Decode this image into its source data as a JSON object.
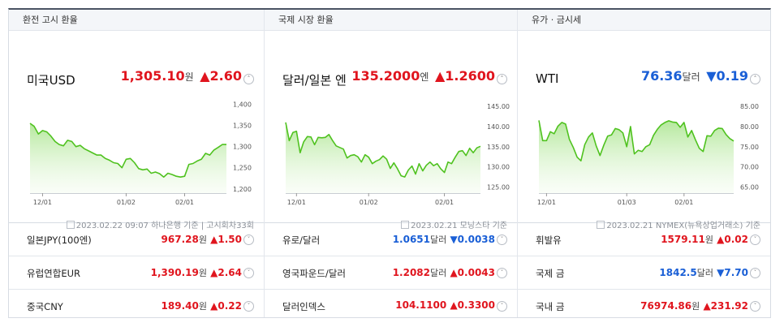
{
  "columns": [
    {
      "header": "환전 고시 환율",
      "main": {
        "name": "미국USD",
        "value": "1,305.10",
        "unit": "원",
        "change": "▲2.60",
        "dir": "up",
        "toggle": "˄"
      },
      "note": "2023.02.22 09:07 하나은행 기준 | 고시회차33회",
      "rows": [
        {
          "name": "일본JPY(100엔)",
          "value": "967.28",
          "unit": "원",
          "change": "▲1.50",
          "dir": "up",
          "toggle": "˅"
        },
        {
          "name": "유럽연합EUR",
          "value": "1,390.19",
          "unit": "원",
          "change": "▲2.64",
          "dir": "up",
          "toggle": "˅"
        },
        {
          "name": "중국CNY",
          "value": "189.40",
          "unit": "원",
          "change": "▲0.22",
          "dir": "up",
          "toggle": "˅"
        }
      ]
    },
    {
      "header": "국제 시장 환율",
      "main": {
        "name": "달러/일본 엔",
        "value": "135.2000",
        "unit": "엔",
        "change": "▲1.2600",
        "dir": "up",
        "toggle": "˄"
      },
      "note": "2023.02.21 모닝스타 기준",
      "rows": [
        {
          "name": "유로/달러",
          "value": "1.0651",
          "unit": "달러",
          "change": "▼0.0038",
          "dir": "down",
          "toggle": "˅"
        },
        {
          "name": "영국파운드/달러",
          "value": "1.2082",
          "unit": "달러",
          "change": "▲0.0043",
          "dir": "up",
          "toggle": "˅"
        },
        {
          "name": "달러인덱스",
          "value": "104.1100",
          "unit": "",
          "change": "▲0.3300",
          "dir": "up",
          "toggle": "˅"
        }
      ]
    },
    {
      "header": "유가 · 금시세",
      "main": {
        "name": "WTI",
        "value": "76.36",
        "unit": "달러",
        "change": "▼0.19",
        "dir": "down",
        "toggle": "˄"
      },
      "note": "2023.02.21 NYMEX(뉴욕상업거래소) 기준",
      "rows": [
        {
          "name": "휘발유",
          "value": "1579.11",
          "unit": "원",
          "change": "▲0.02",
          "dir": "up",
          "toggle": "˅"
        },
        {
          "name": "국제 금",
          "value": "1842.5",
          "unit": "달러",
          "change": "▼7.70",
          "dir": "down",
          "toggle": "˅"
        },
        {
          "name": "국내 금",
          "value": "76974.86",
          "unit": "원",
          "change": "▲231.92",
          "dir": "up",
          "toggle": "˅"
        }
      ]
    }
  ],
  "chart_data": [
    {
      "type": "area",
      "xticks": [
        "12/01",
        "01/02",
        "02/01"
      ],
      "xtick_idx": [
        3,
        23,
        37
      ],
      "yticks": [
        "1,400",
        "1,350",
        "1,300",
        "1,250",
        "1,200"
      ],
      "ytick_vals": [
        1400,
        1350,
        1300,
        1250,
        1200
      ],
      "ylim": [
        1190,
        1405
      ],
      "values": [
        1355,
        1348,
        1330,
        1338,
        1335,
        1325,
        1312,
        1305,
        1302,
        1315,
        1312,
        1300,
        1303,
        1295,
        1290,
        1285,
        1280,
        1280,
        1272,
        1268,
        1262,
        1260,
        1250,
        1270,
        1272,
        1262,
        1248,
        1245,
        1247,
        1237,
        1240,
        1236,
        1228,
        1237,
        1234,
        1230,
        1228,
        1230,
        1258,
        1260,
        1266,
        1270,
        1284,
        1280,
        1292,
        1298,
        1305,
        1305
      ]
    },
    {
      "type": "area",
      "xticks": [
        "12/01",
        "01/02",
        "02/01"
      ],
      "xtick_idx": [
        3,
        23,
        44
      ],
      "yticks": [
        "145.00",
        "140.00",
        "135.00",
        "130.00",
        "125.00"
      ],
      "ytick_vals": [
        145,
        140,
        135,
        130,
        125
      ],
      "ylim": [
        123.5,
        146
      ],
      "values": [
        141,
        136.5,
        138.5,
        138.8,
        133.5,
        136.2,
        137.5,
        137.4,
        135.5,
        137.3,
        137.2,
        137.3,
        138,
        136.5,
        135.2,
        134.8,
        134.4,
        132.2,
        132.8,
        133,
        132.5,
        131.2,
        133,
        132.4,
        130.8,
        131.4,
        131.8,
        132.7,
        131.9,
        129.6,
        131,
        129.5,
        127.8,
        127.5,
        129.2,
        130.2,
        128.2,
        130.8,
        129,
        130.4,
        131.2,
        130.3,
        130.8,
        129.5,
        128.6,
        131.2,
        130.8,
        132.4,
        133.8,
        134,
        132.8,
        134.6,
        133.5,
        134.7,
        135.1
      ]
    },
    {
      "type": "area",
      "xticks": [
        "12/01",
        "01/03",
        "02/01"
      ],
      "xtick_idx": [
        2,
        23,
        38
      ],
      "yticks": [
        "85.00",
        "80.00",
        "75.00",
        "70.00",
        "65.00"
      ],
      "ytick_vals": [
        85,
        80,
        75,
        70,
        65
      ],
      "ylim": [
        63.5,
        86
      ],
      "values": [
        81.5,
        76.5,
        76.5,
        78.7,
        78.2,
        80.1,
        81,
        80.6,
        76.8,
        74.8,
        72.4,
        71.5,
        75.5,
        77.4,
        78.4,
        75.2,
        72.8,
        75.4,
        77.6,
        77.9,
        79.5,
        79.2,
        78.4,
        75,
        80,
        73.2,
        74.1,
        73.8,
        75,
        75.5,
        77.8,
        79.3,
        80.4,
        81,
        81.4,
        81.1,
        81,
        79.8,
        81,
        77.4,
        79,
        76.7,
        74.6,
        73.8,
        77.7,
        77.6,
        79,
        79.6,
        79.5,
        78,
        77,
        76.4
      ]
    }
  ]
}
